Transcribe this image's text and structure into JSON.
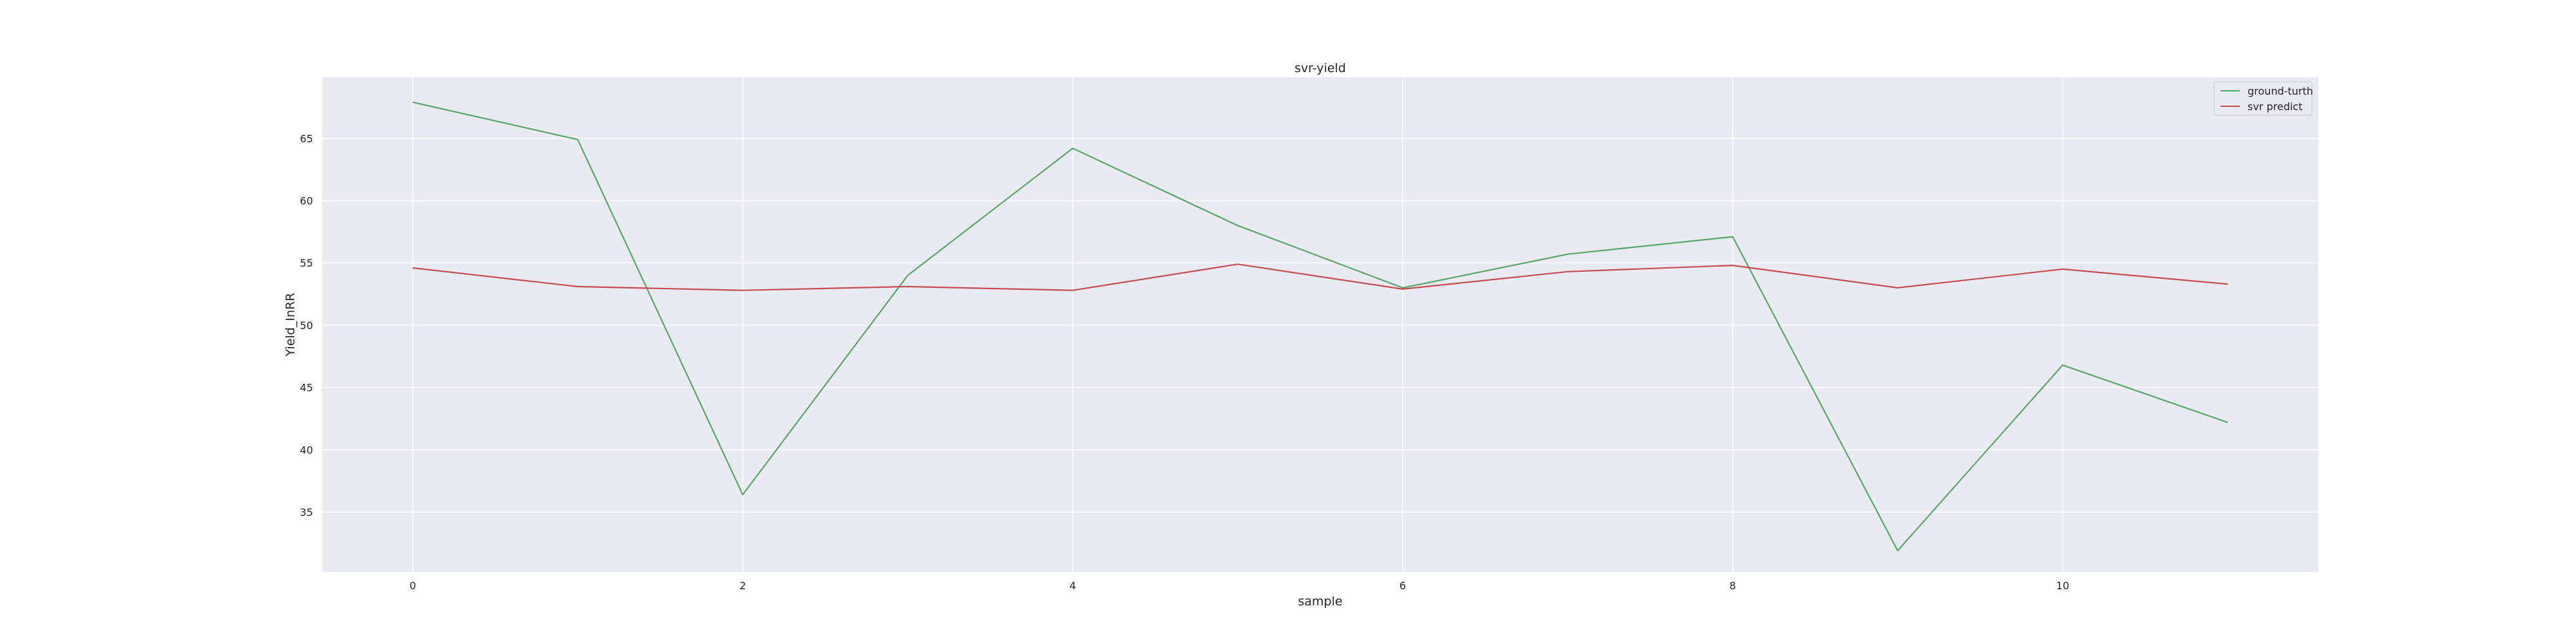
{
  "chart_data": {
    "type": "line",
    "title": "svr-yield",
    "xlabel": "sample",
    "ylabel": "Yield_InRR",
    "x": [
      0,
      1,
      2,
      3,
      4,
      5,
      6,
      7,
      8,
      9,
      10,
      11
    ],
    "xlim": [
      -0.55,
      11.55
    ],
    "ylim": [
      30.2,
      69.9
    ],
    "xticks": [
      0,
      2,
      4,
      6,
      8,
      10
    ],
    "yticks": [
      35,
      40,
      45,
      50,
      55,
      60,
      65
    ],
    "grid": true,
    "legend_position": "top-right",
    "background_color": "#eaeaf2",
    "grid_color": "#ffffff",
    "series": [
      {
        "name": "ground-turth",
        "color": "#55a868",
        "values": [
          67.9,
          64.9,
          36.4,
          54.0,
          64.2,
          58.0,
          53.0,
          55.7,
          57.1,
          31.9,
          46.8,
          42.2
        ]
      },
      {
        "name": "svr predict",
        "color": "#c44e52",
        "values": [
          54.6,
          53.1,
          52.8,
          53.1,
          52.8,
          54.9,
          52.9,
          54.3,
          54.8,
          53.0,
          54.5,
          53.3
        ]
      }
    ]
  }
}
